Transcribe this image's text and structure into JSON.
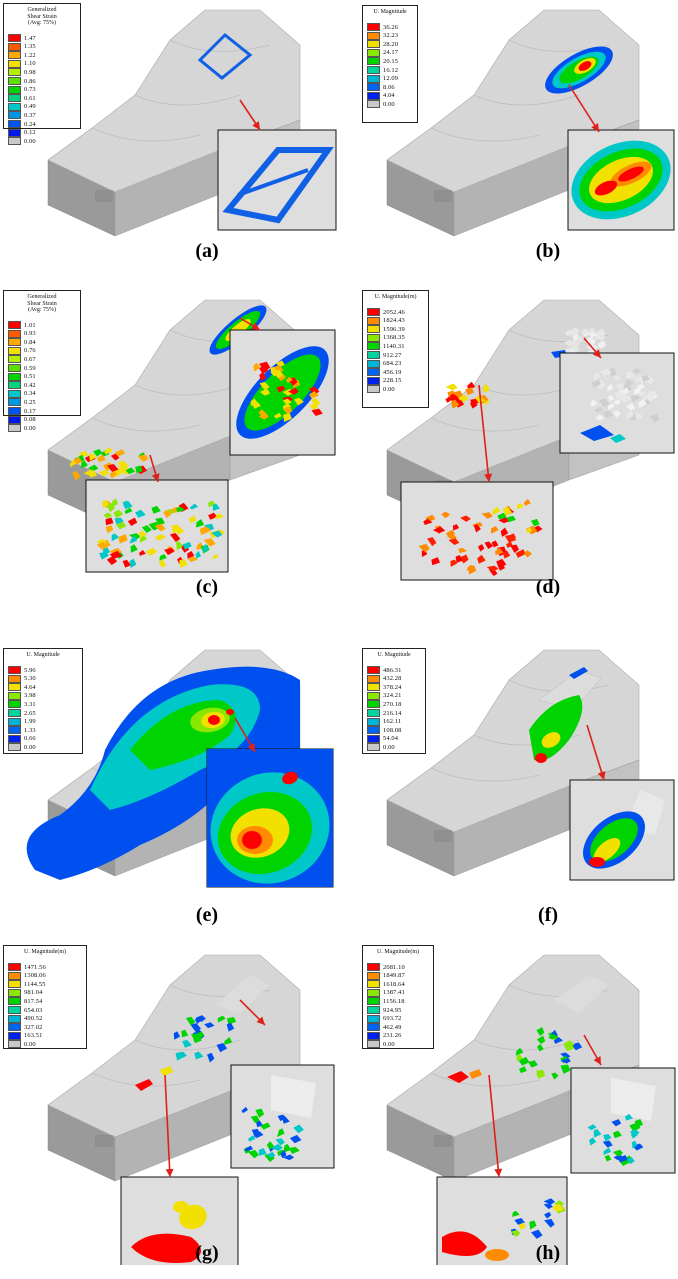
{
  "panels": [
    {
      "label": "(a)",
      "legend_title": [
        "Generalized",
        "Shear Strain",
        "(Avg: 75%)"
      ],
      "values": [
        "1.47",
        "1.35",
        "1.22",
        "1.10",
        "0.98",
        "0.86",
        "0.73",
        "0.61",
        "0.49",
        "0.37",
        "0.24",
        "0.12",
        "0.00"
      ]
    },
    {
      "label": "(b)",
      "legend_title": [
        "U. Magnitude"
      ],
      "values": [
        "36.26",
        "32.23",
        "28.20",
        "24.17",
        "20.15",
        "16.12",
        "12.09",
        "8.06",
        "4.04",
        "0.00"
      ]
    },
    {
      "label": "(c)",
      "legend_title": [
        "Generalized",
        "Shear Strain",
        "(Avg: 75%)"
      ],
      "values": [
        "1.01",
        "0.93",
        "0.84",
        "0.76",
        "0.67",
        "0.59",
        "0.51",
        "0.42",
        "0.34",
        "0.25",
        "0.17",
        "0.08",
        "0.00"
      ]
    },
    {
      "label": "(d)",
      "legend_title": [
        "U. Magnitude(m)"
      ],
      "values": [
        "2052.46",
        "1824.43",
        "1596.39",
        "1368.35",
        "1140.31",
        "912.27",
        "684.23",
        "456.19",
        "228.15",
        "0.00"
      ]
    },
    {
      "label": "(e)",
      "legend_title": [
        "U. Magnitude"
      ],
      "values": [
        "5.96",
        "5.30",
        "4.64",
        "3.98",
        "3.31",
        "2.65",
        "1.99",
        "1.33",
        "0.66",
        "0.00"
      ]
    },
    {
      "label": "(f)",
      "legend_title": [
        "U. Magnitude"
      ],
      "values": [
        "486.31",
        "432.28",
        "378.24",
        "324.21",
        "270.18",
        "216.14",
        "162.11",
        "108.08",
        "54.04",
        "0.00"
      ]
    },
    {
      "label": "(g)",
      "legend_title": [
        "U. Magnitude(m)"
      ],
      "values": [
        "1471.56",
        "1308.06",
        "1144.55",
        "981.04",
        "817.54",
        "654.03",
        "490.52",
        "327.02",
        "163.51",
        "0.00"
      ]
    },
    {
      "label": "(h)",
      "legend_title": [
        "U. Magnitude(m)"
      ],
      "values": [
        "2081.10",
        "1849.87",
        "1618.64",
        "1387.41",
        "1156.18",
        "924.95",
        "693.72",
        "462.49",
        "231.26",
        "0.00"
      ]
    }
  ],
  "colors": {
    "scale13": [
      "#ff0000",
      "#ff5a00",
      "#ffa800",
      "#f2e000",
      "#b6f000",
      "#5ce000",
      "#00d400",
      "#00d47c",
      "#00c8c8",
      "#0096e6",
      "#0055f0",
      "#0018ee",
      "#c8c8c8"
    ],
    "scale10": [
      "#ff0000",
      "#ff8c00",
      "#f2e000",
      "#8ae800",
      "#00d400",
      "#00d49e",
      "#00b4d8",
      "#0066f0",
      "#0020ee",
      "#c8c8c8"
    ],
    "arrow": "#e0201a",
    "rock": "#d6d6d6"
  }
}
